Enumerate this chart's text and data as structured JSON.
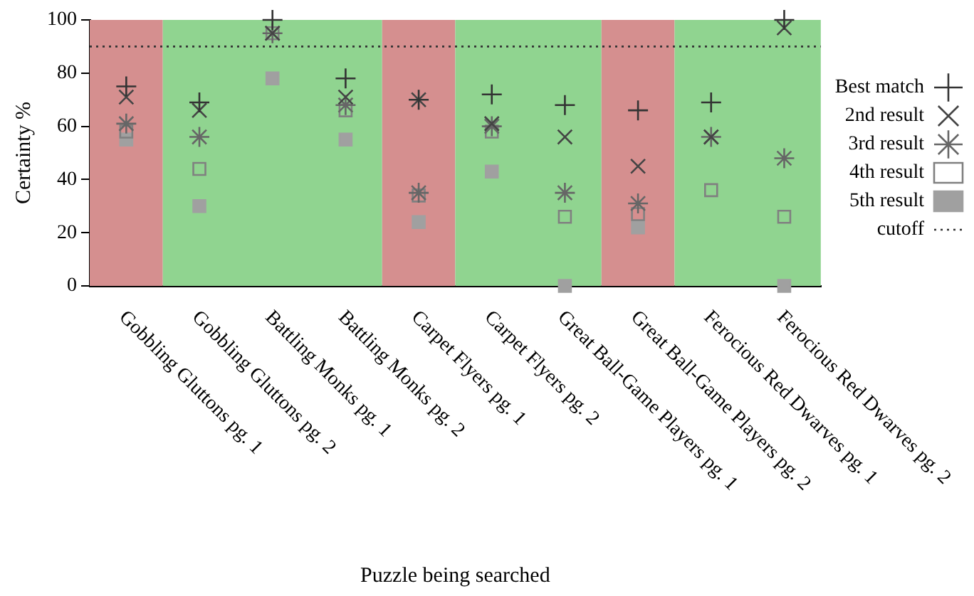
{
  "chart_data": {
    "type": "scatter",
    "xlabel": "Puzzle being searched",
    "ylabel": "Certainty %",
    "categories": [
      "Gobbling Gluttons pg. 1",
      "Gobbling Gluttons pg. 2",
      "Battling Monks pg. 1",
      "Battling Monks pg. 2",
      "Carpet Flyers pg. 1",
      "Carpet Flyers pg. 2",
      "Great Ball-Game Players pg. 1",
      "Great Ball-Game Players pg. 2",
      "Ferocious Red Dwarves pg. 1",
      "Ferocious Red Dwarves pg. 2"
    ],
    "series": [
      {
        "name": "Best match",
        "color": "#333333",
        "values": [
          75,
          69,
          100,
          78,
          70,
          72,
          68,
          66,
          69,
          100
        ]
      },
      {
        "name": "2nd result",
        "color": "#444444",
        "values": [
          71,
          66,
          95,
          71,
          70,
          61,
          56,
          45,
          56,
          97
        ]
      },
      {
        "name": "3rd result",
        "color": "#666666",
        "values": [
          61,
          56,
          95,
          68,
          35,
          60,
          35,
          31,
          56,
          48
        ]
      },
      {
        "name": "4th result",
        "color": "#808080",
        "values": [
          58,
          44,
          95,
          66,
          34,
          58,
          26,
          27,
          36,
          26
        ]
      },
      {
        "name": "5th result",
        "color": "#a0a0a0",
        "values": [
          55,
          30,
          78,
          55,
          24,
          43,
          0,
          22,
          null,
          0
        ]
      }
    ],
    "ylim": [
      0,
      100
    ],
    "yticks": [
      0,
      20,
      40,
      60,
      80,
      100
    ],
    "grid": false,
    "legend": "right",
    "ref_lines": [
      {
        "axis": "y",
        "value": 90,
        "label": "cutoff",
        "color": "#333333",
        "line_style": "dotted"
      }
    ],
    "bands": [
      {
        "axis": "x",
        "from": "Gobbling Gluttons pg. 1",
        "to": "Gobbling Gluttons pg. 1",
        "color": "#d58f8f"
      },
      {
        "axis": "x",
        "from": "Gobbling Gluttons pg. 2",
        "to": "Battling Monks pg. 2",
        "color": "#90d490"
      },
      {
        "axis": "x",
        "from": "Carpet Flyers pg. 1",
        "to": "Carpet Flyers pg. 1",
        "color": "#d58f8f"
      },
      {
        "axis": "x",
        "from": "Carpet Flyers pg. 2",
        "to": "Great Ball-Game Players pg. 1",
        "color": "#90d490"
      },
      {
        "axis": "x",
        "from": "Great Ball-Game Players pg. 2",
        "to": "Great Ball-Game Players pg. 2",
        "color": "#d58f8f"
      },
      {
        "axis": "x",
        "from": "Ferocious Red Dwarves pg. 1",
        "to": "Ferocious Red Dwarves pg. 2",
        "color": "#90d490"
      }
    ]
  }
}
